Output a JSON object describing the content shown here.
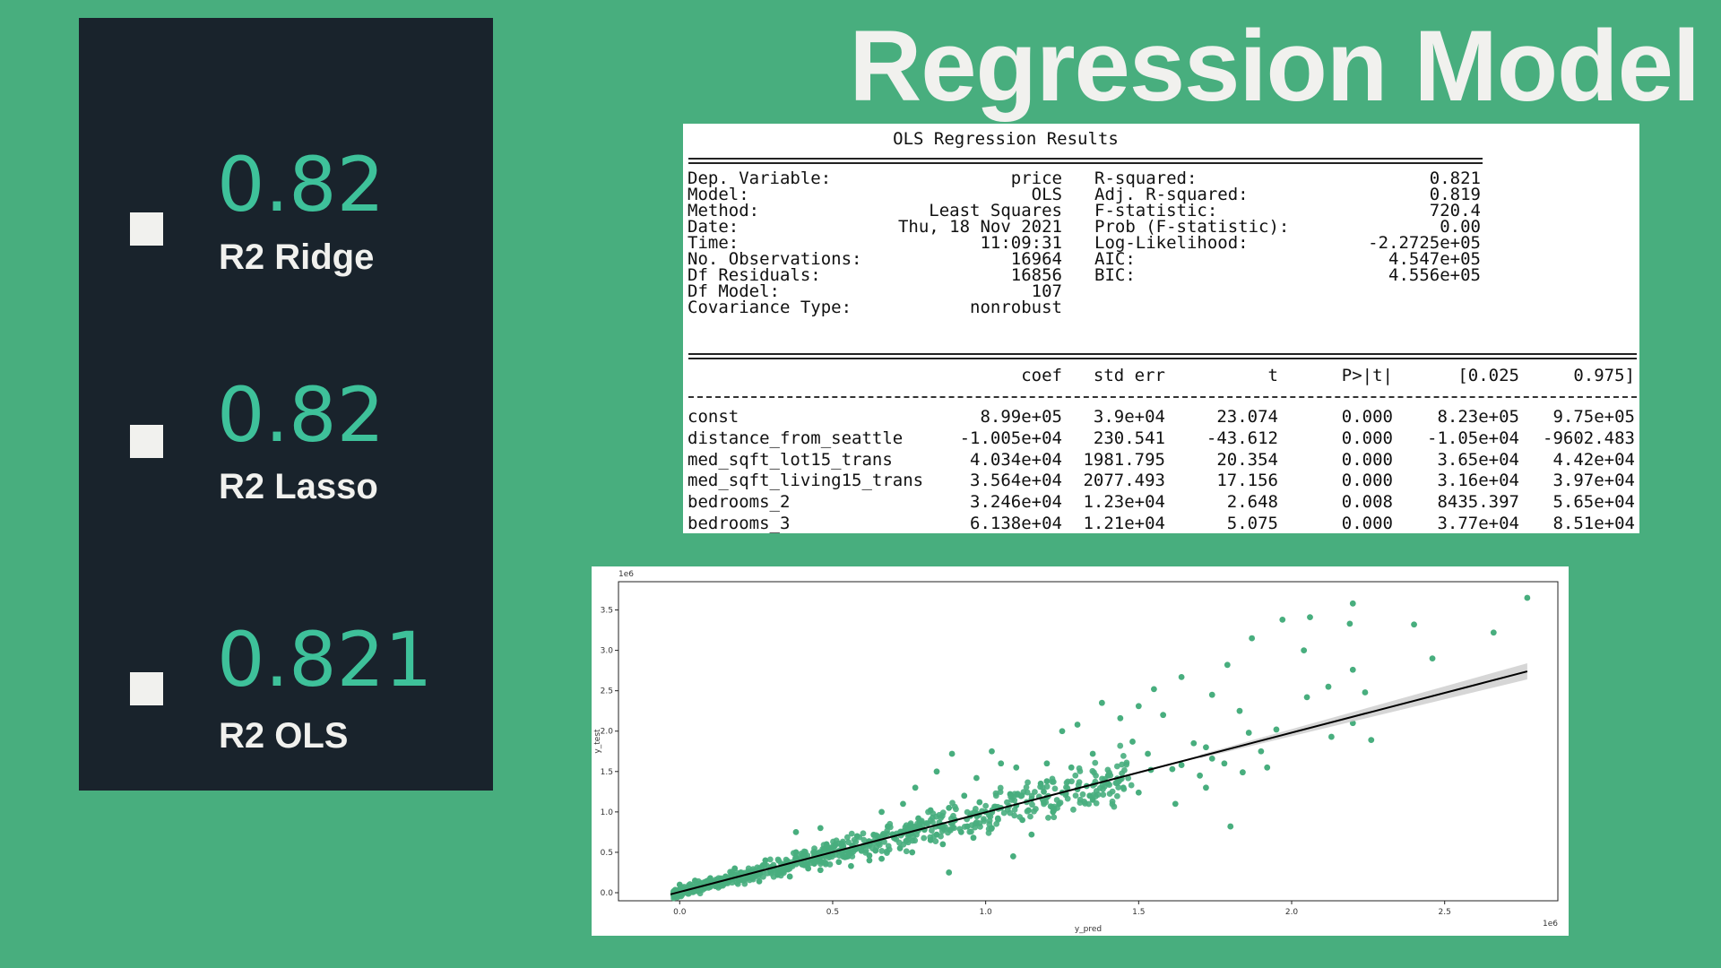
{
  "page": {
    "title": "Regression Model"
  },
  "metrics": [
    {
      "value": "0.82",
      "label": "R2 Ridge"
    },
    {
      "value": "0.82",
      "label": "R2 Lasso"
    },
    {
      "value": "0.821",
      "label": "R2 OLS"
    }
  ],
  "ols": {
    "caption": "OLS Regression Results",
    "summary_left": [
      [
        "Dep. Variable:",
        "price"
      ],
      [
        "Model:",
        "OLS"
      ],
      [
        "Method:",
        "Least Squares"
      ],
      [
        "Date:",
        "Thu, 18 Nov 2021"
      ],
      [
        "Time:",
        "11:09:31"
      ],
      [
        "No. Observations:",
        "16964"
      ],
      [
        "Df Residuals:",
        "16856"
      ],
      [
        "Df Model:",
        "107"
      ],
      [
        "Covariance Type:",
        "nonrobust"
      ]
    ],
    "summary_right": [
      [
        "R-squared:",
        "0.821"
      ],
      [
        "Adj. R-squared:",
        "0.819"
      ],
      [
        "F-statistic:",
        "720.4"
      ],
      [
        "Prob (F-statistic):",
        "0.00"
      ],
      [
        "Log-Likelihood:",
        "-2.2725e+05"
      ],
      [
        "AIC:",
        "4.547e+05"
      ],
      [
        "BIC:",
        "4.556e+05"
      ]
    ],
    "headers": [
      "coef",
      "std err",
      "t",
      "P>|t|",
      "[0.025",
      "0.975]"
    ],
    "rows": [
      [
        "const",
        "8.99e+05",
        "3.9e+04",
        "23.074",
        "0.000",
        "8.23e+05",
        "9.75e+05"
      ],
      [
        "distance_from_seattle",
        "-1.005e+04",
        "230.541",
        "-43.612",
        "0.000",
        "-1.05e+04",
        "-9602.483"
      ],
      [
        "med_sqft_lot15_trans",
        "4.034e+04",
        "1981.795",
        "20.354",
        "0.000",
        "3.65e+04",
        "4.42e+04"
      ],
      [
        "med_sqft_living15_trans",
        "3.564e+04",
        "2077.493",
        "17.156",
        "0.000",
        "3.16e+04",
        "3.97e+04"
      ],
      [
        "bedrooms_2",
        "3.246e+04",
        "1.23e+04",
        "2.648",
        "0.008",
        "8435.397",
        "5.65e+04"
      ],
      [
        "bedrooms_3",
        "6.138e+04",
        "1.21e+04",
        "5.075",
        "0.000",
        "3.77e+04",
        "8.51e+04"
      ]
    ]
  },
  "chart_data": {
    "type": "scatter",
    "title": "",
    "xlabel": "y_pred",
    "ylabel": "y_test",
    "x_multiplier_label": "1e6",
    "y_multiplier_label": "1e6",
    "xlim": [
      -0.2,
      2.87
    ],
    "ylim": [
      -0.1,
      3.85
    ],
    "xticks": [
      0.0,
      0.5,
      1.0,
      1.5,
      2.0,
      2.5
    ],
    "xtick_labels": [
      "0.0",
      "0.5",
      "1.0",
      "1.5",
      "2.0",
      "2.5"
    ],
    "yticks": [
      0.0,
      0.5,
      1.0,
      1.5,
      2.0,
      2.5,
      3.0,
      3.5
    ],
    "ytick_labels": [
      "0.0",
      "0.5",
      "1.0",
      "1.5",
      "2.0",
      "2.5",
      "3.0",
      "3.5"
    ],
    "grid": false,
    "point_color": "#48ae7e",
    "line_color": "#000000",
    "band_color": "#cccccc",
    "regression_line": {
      "x": [
        -0.03,
        2.77
      ],
      "y": [
        -0.02,
        2.74
      ]
    },
    "series": [
      {
        "values": [
          [
            2.77,
            3.65
          ],
          [
            2.2,
            3.58
          ],
          [
            2.06,
            3.41
          ],
          [
            1.97,
            3.38
          ],
          [
            2.4,
            3.32
          ],
          [
            2.66,
            3.22
          ],
          [
            2.19,
            3.33
          ],
          [
            1.87,
            3.15
          ],
          [
            2.04,
            3.0
          ],
          [
            2.46,
            2.9
          ],
          [
            1.79,
            2.82
          ],
          [
            2.2,
            2.76
          ],
          [
            1.64,
            2.67
          ],
          [
            1.55,
            2.52
          ],
          [
            2.12,
            2.55
          ],
          [
            1.74,
            2.45
          ],
          [
            2.24,
            2.48
          ],
          [
            1.38,
            2.35
          ],
          [
            2.05,
            2.42
          ],
          [
            1.83,
            2.25
          ],
          [
            1.5,
            2.31
          ],
          [
            1.58,
            2.2
          ],
          [
            1.44,
            2.16
          ],
          [
            2.2,
            2.1
          ],
          [
            1.95,
            2.02
          ],
          [
            1.3,
            2.08
          ],
          [
            1.25,
            2.0
          ],
          [
            1.86,
            1.98
          ],
          [
            2.13,
            1.93
          ],
          [
            2.26,
            1.89
          ],
          [
            1.68,
            1.85
          ],
          [
            1.72,
            1.8
          ],
          [
            1.53,
            1.72
          ],
          [
            1.9,
            1.75
          ],
          [
            1.61,
            1.53
          ],
          [
            1.78,
            1.6
          ],
          [
            1.92,
            1.55
          ],
          [
            1.4,
            1.45
          ],
          [
            1.84,
            1.49
          ],
          [
            1.33,
            1.32
          ],
          [
            1.28,
            1.55
          ],
          [
            1.2,
            1.6
          ],
          [
            1.1,
            1.55
          ],
          [
            1.05,
            1.6
          ],
          [
            0.97,
            1.42
          ],
          [
            0.84,
            1.5
          ],
          [
            0.77,
            1.3
          ],
          [
            0.93,
            1.2
          ],
          [
            1.19,
            1.25
          ],
          [
            1.02,
            1.75
          ],
          [
            0.89,
            1.72
          ],
          [
            1.35,
            1.72
          ],
          [
            1.48,
            1.87
          ],
          [
            1.2,
            1.38
          ],
          [
            1.45,
            1.3
          ],
          [
            0.66,
            1.0
          ],
          [
            0.46,
            0.8
          ],
          [
            0.38,
            0.75
          ],
          [
            0.73,
            1.1
          ],
          [
            0.82,
            1.02
          ],
          [
            1.62,
            1.1
          ],
          [
            1.8,
            0.82
          ],
          [
            1.5,
            1.24
          ],
          [
            1.35,
            1.15
          ],
          [
            1.72,
            1.3
          ],
          [
            1.15,
            0.72
          ],
          [
            1.09,
            0.45
          ],
          [
            0.88,
            0.25
          ],
          [
            0.62,
            0.4
          ],
          [
            0.55,
            0.45
          ],
          [
            0.0,
            0.1
          ],
          [
            0.05,
            0.15
          ],
          [
            0.1,
            0.18
          ],
          [
            0.15,
            0.2
          ],
          [
            0.2,
            0.25
          ],
          [
            0.25,
            0.24
          ],
          [
            0.3,
            0.32
          ],
          [
            0.35,
            0.38
          ],
          [
            0.4,
            0.35
          ],
          [
            0.45,
            0.41
          ],
          [
            0.5,
            0.48
          ],
          [
            0.55,
            0.52
          ],
          [
            0.6,
            0.58
          ],
          [
            0.65,
            0.61
          ],
          [
            0.7,
            0.7
          ],
          [
            0.75,
            0.72
          ],
          [
            0.8,
            0.78
          ],
          [
            0.85,
            0.82
          ],
          [
            0.9,
            0.9
          ],
          [
            0.95,
            0.95
          ],
          [
            1.0,
            1.0
          ],
          [
            1.05,
            1.05
          ],
          [
            1.1,
            1.08
          ],
          [
            1.15,
            1.16
          ],
          [
            1.2,
            1.18
          ],
          [
            1.25,
            1.24
          ],
          [
            1.3,
            1.28
          ],
          [
            1.4,
            1.35
          ],
          [
            0.12,
            0.08
          ],
          [
            0.22,
            0.18
          ],
          [
            0.32,
            0.22
          ],
          [
            0.42,
            0.3
          ],
          [
            0.52,
            0.38
          ],
          [
            0.62,
            0.46
          ],
          [
            0.72,
            0.55
          ],
          [
            0.82,
            0.65
          ],
          [
            0.92,
            0.75
          ],
          [
            1.02,
            0.8
          ],
          [
            1.12,
            0.9
          ],
          [
            1.22,
            1.0
          ],
          [
            0.18,
            0.3
          ],
          [
            0.28,
            0.4
          ],
          [
            0.38,
            0.5
          ],
          [
            0.48,
            0.6
          ],
          [
            0.58,
            0.7
          ],
          [
            0.68,
            0.82
          ],
          [
            0.78,
            0.92
          ],
          [
            0.88,
            1.05
          ],
          [
            0.98,
            1.12
          ],
          [
            1.08,
            1.22
          ],
          [
            1.18,
            1.35
          ],
          [
            0.26,
            0.14
          ],
          [
            0.36,
            0.2
          ],
          [
            0.46,
            0.28
          ],
          [
            0.56,
            0.33
          ],
          [
            0.66,
            0.42
          ],
          [
            0.76,
            0.5
          ],
          [
            0.86,
            0.6
          ],
          [
            0.96,
            0.68
          ],
          [
            0.14,
            0.12
          ],
          [
            0.24,
            0.2
          ],
          [
            0.34,
            0.27
          ],
          [
            0.44,
            0.36
          ],
          [
            0.54,
            0.44
          ],
          [
            0.64,
            0.52
          ],
          [
            0.74,
            0.64
          ],
          [
            0.84,
            0.72
          ],
          [
            0.94,
            0.82
          ],
          [
            1.04,
            0.92
          ],
          [
            1.14,
            1.02
          ],
          [
            1.24,
            1.1
          ],
          [
            1.34,
            1.2
          ],
          [
            1.44,
            1.4
          ],
          [
            1.54,
            1.52
          ],
          [
            1.64,
            1.58
          ],
          [
            1.74,
            1.66
          ],
          [
            1.7,
            1.45
          ]
        ]
      }
    ]
  }
}
